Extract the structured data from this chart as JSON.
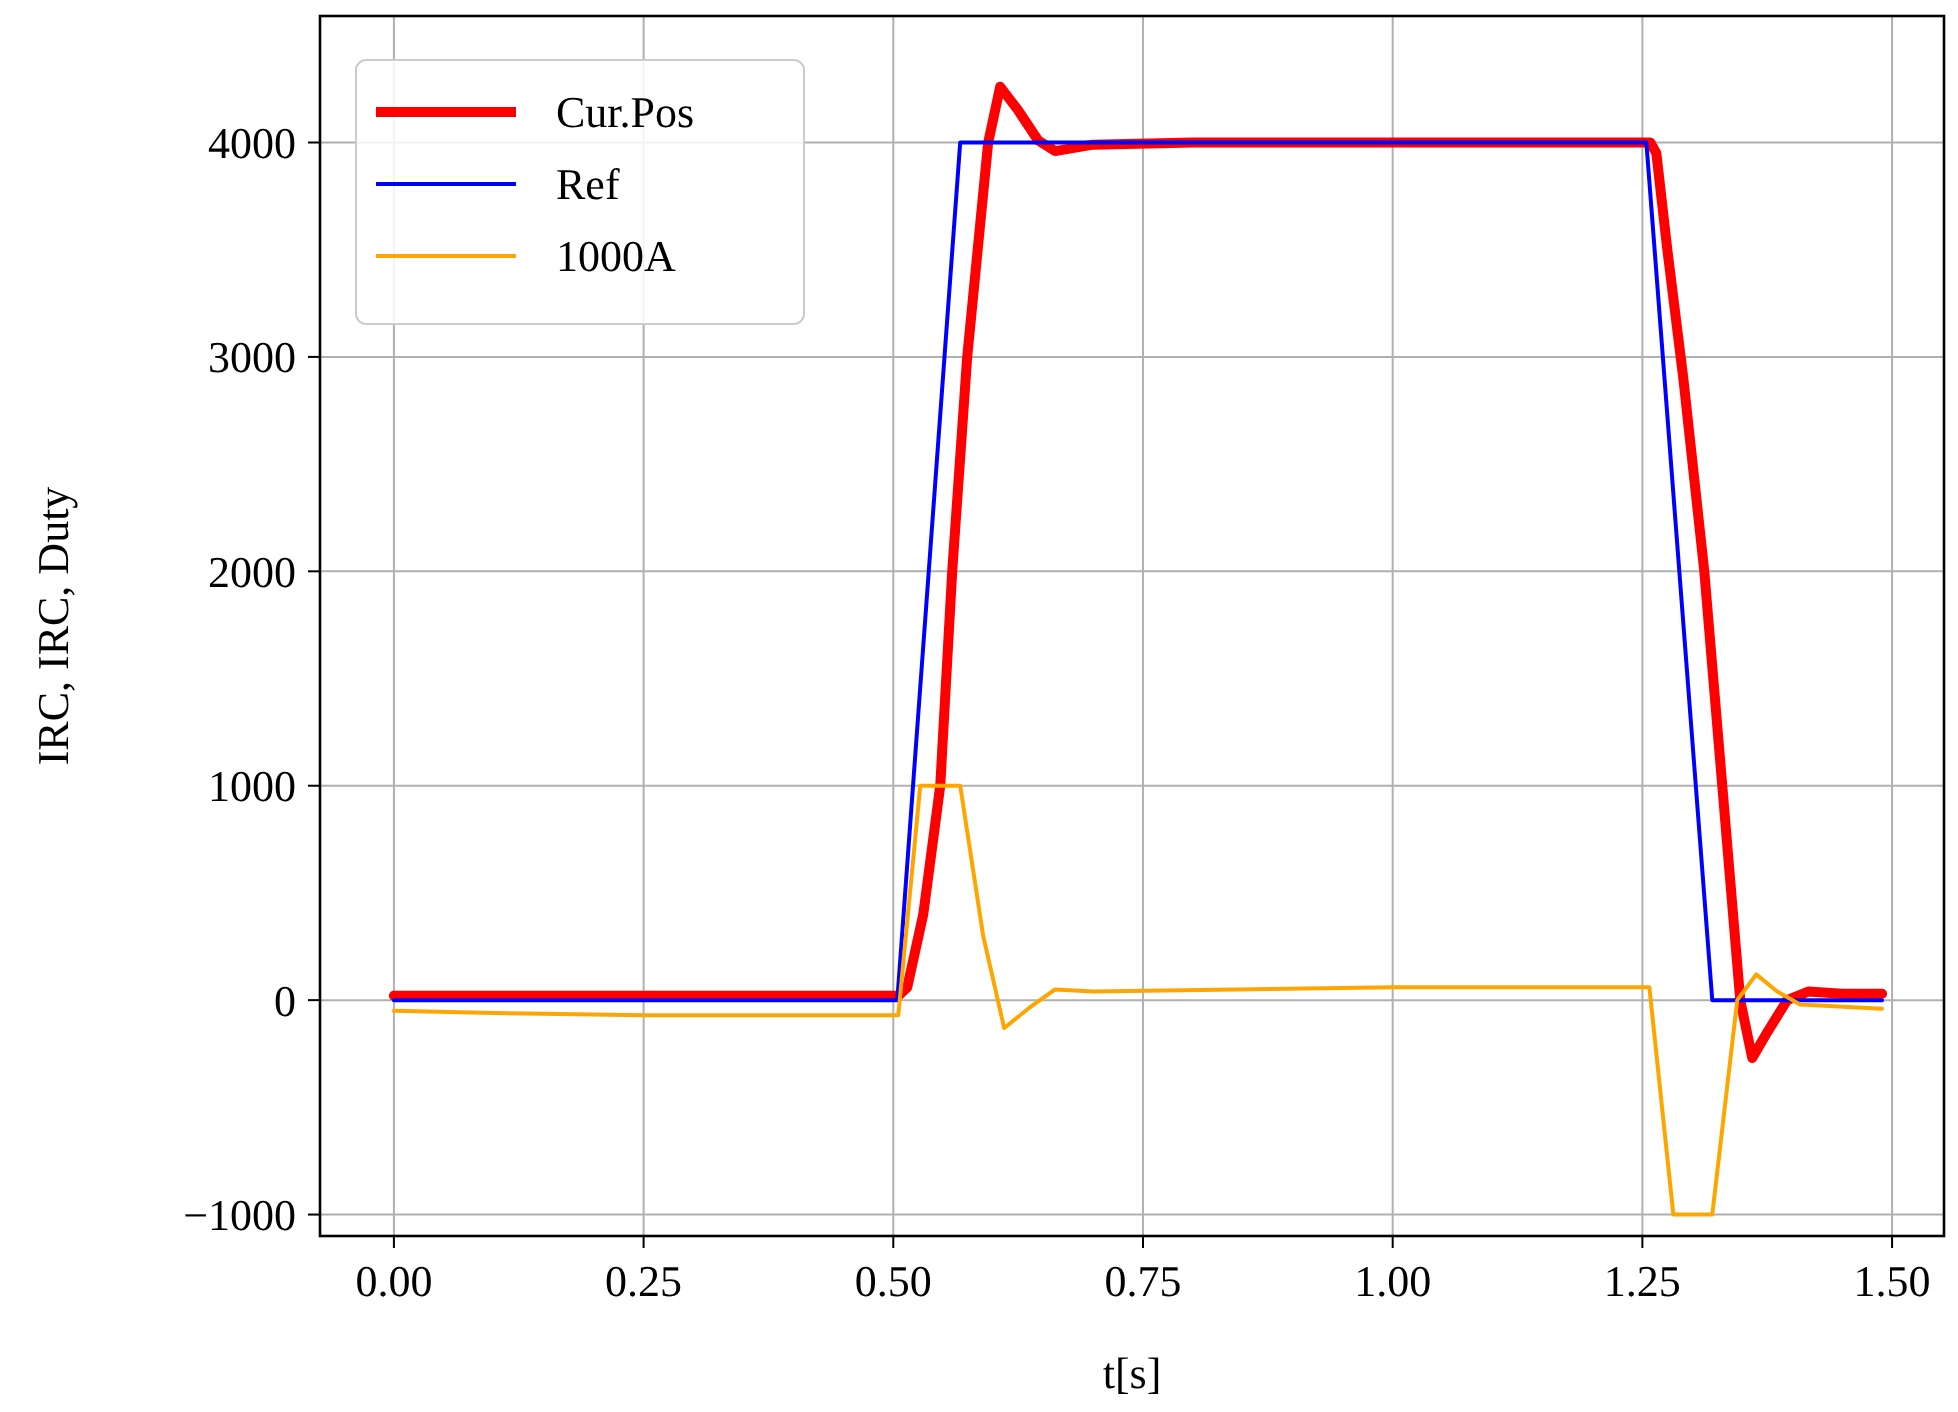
{
  "chart_data": {
    "type": "line",
    "xlabel": "t[s]",
    "ylabel": "IRC, IRC, Duty",
    "xlim": [
      -0.074,
      1.552
    ],
    "ylim": [
      -1100,
      4590
    ],
    "xticks": [
      {
        "value": 0,
        "label": "0.00"
      },
      {
        "value": 0.25,
        "label": "0.25"
      },
      {
        "value": 0.5,
        "label": "0.50"
      },
      {
        "value": 0.75,
        "label": "0.75"
      },
      {
        "value": 1,
        "label": "1.00"
      },
      {
        "value": 1.25,
        "label": "1.25"
      },
      {
        "value": 1.5,
        "label": "1.50"
      }
    ],
    "yticks": [
      {
        "value": -1000,
        "label": "−1000"
      },
      0,
      1000,
      2000,
      3000,
      4000
    ],
    "grid": true,
    "legend": "top left",
    "line_style": "solid",
    "series": [
      {
        "name": "Cur.Pos",
        "color": "#ff0000",
        "x": [
          0,
          0.25,
          0.505,
          0.514,
          0.53,
          0.547,
          0.559,
          0.574,
          0.595,
          0.607,
          0.625,
          0.645,
          0.662,
          0.7,
          0.8,
          1.0,
          1.258,
          1.264,
          1.275,
          1.291,
          1.312,
          1.33,
          1.348,
          1.36,
          1.375,
          1.395,
          1.416,
          1.45,
          1.49
        ],
        "values": [
          20,
          20,
          20,
          60,
          400,
          1000,
          2000,
          3000,
          4000,
          4260,
          4150,
          4010,
          3960,
          3990,
          4000,
          4000,
          4000,
          3950,
          3500,
          2900,
          2000,
          1000,
          0,
          -270,
          -150,
          0,
          40,
          30,
          30
        ]
      },
      {
        "name": "Ref",
        "color": "#0000ff",
        "x": [
          0,
          0.504,
          0.567,
          1.254,
          1.32,
          1.49
        ],
        "values": [
          0,
          0,
          4000,
          4000,
          0,
          0
        ]
      },
      {
        "name": "1000A",
        "color": "#ffa500",
        "x": [
          0,
          0.1,
          0.25,
          0.505,
          0.527,
          0.567,
          0.59,
          0.611,
          0.635,
          0.662,
          0.7,
          1.0,
          1.257,
          1.281,
          1.32,
          1.345,
          1.364,
          1.385,
          1.408,
          1.49
        ],
        "values": [
          -50,
          -60,
          -70,
          -70,
          1000,
          1000,
          300,
          -130,
          -40,
          50,
          40,
          60,
          60,
          -1000,
          -1000,
          0,
          120,
          40,
          -20,
          -40
        ]
      }
    ]
  }
}
